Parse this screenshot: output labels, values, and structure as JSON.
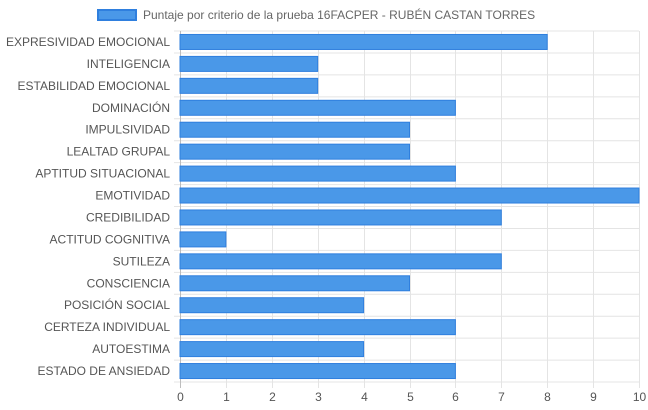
{
  "legend": {
    "label": "Puntaje por criterio de la prueba 16FACPER - RUBÉN CASTAN TORRES"
  },
  "colors": {
    "bar_fill": "#4a98e8",
    "bar_border": "#2f7fde",
    "grid": "#e4e4e4",
    "axis": "#bdbdbd",
    "text": "#555555"
  },
  "chart_data": {
    "type": "bar",
    "orientation": "horizontal",
    "categories": [
      "EXPRESIVIDAD EMOCIONAL",
      "INTELIGENCIA",
      "ESTABILIDAD EMOCIONAL",
      "DOMINACIÓN",
      "IMPULSIVIDAD",
      "LEALTAD GRUPAL",
      "APTITUD SITUACIONAL",
      "EMOTIVIDAD",
      "CREDIBILIDAD",
      "ACTITUD COGNITIVA",
      "SUTILEZA",
      "CONSCIENCIA",
      "POSICIÓN SOCIAL",
      "CERTEZA INDIVIDUAL",
      "AUTOESTIMA",
      "ESTADO DE ANSIEDAD"
    ],
    "series": [
      {
        "name": "Puntaje por criterio de la prueba 16FACPER - RUBÉN CASTAN TORRES",
        "values": [
          8,
          3,
          3,
          6,
          5,
          5,
          6,
          10,
          7,
          1,
          7,
          5,
          4,
          6,
          4,
          6
        ]
      }
    ],
    "xticks": [
      "0",
      "1",
      "2",
      "3",
      "4",
      "5",
      "6",
      "7",
      "8",
      "9",
      "10"
    ],
    "xlim": [
      0,
      10
    ],
    "grid": true,
    "legend_position": "top"
  }
}
